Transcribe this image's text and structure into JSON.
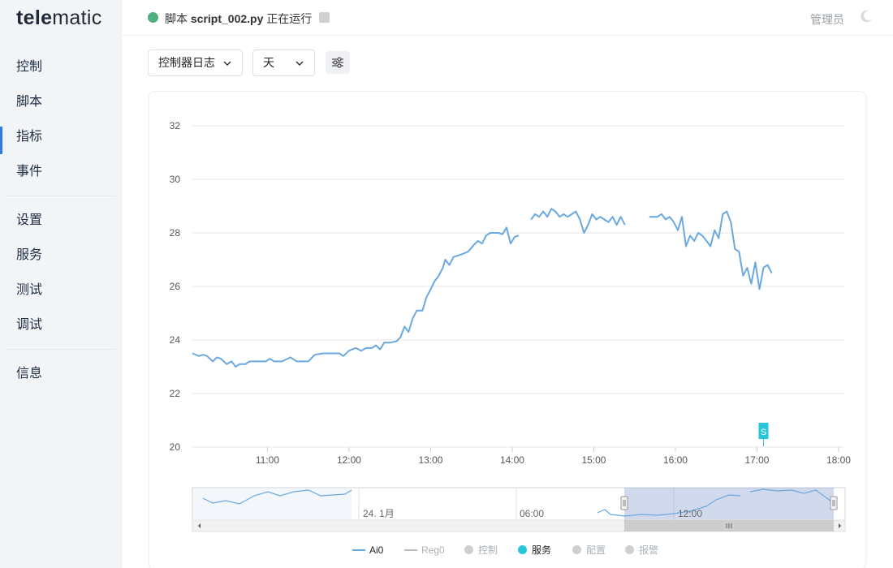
{
  "app": {
    "logo_bold": "tele",
    "logo_rest": "matic"
  },
  "sidebar": {
    "groups": [
      [
        {
          "label": "控制"
        },
        {
          "label": "脚本"
        },
        {
          "label": "指标",
          "active": true
        },
        {
          "label": "事件"
        }
      ],
      [
        {
          "label": "设置"
        },
        {
          "label": "服务"
        },
        {
          "label": "测试"
        },
        {
          "label": "调试"
        }
      ],
      [
        {
          "label": "信息"
        }
      ]
    ]
  },
  "header": {
    "script_prefix": "脚本",
    "script_name": "script_002.py",
    "script_state": "正在运行",
    "status_color": "#4caf7d",
    "user": "管理员",
    "theme_icon": "moon-icon"
  },
  "toolbar": {
    "log_select": "控制器日志",
    "range_select": "天",
    "settings_icon": "sliders-icon"
  },
  "chart_data": {
    "type": "line",
    "series": [
      {
        "name": "Ai0",
        "color": "#6aa8e0",
        "segments": [
          [
            [
              10.0,
              23.5
            ],
            [
              10.08,
              23.4
            ],
            [
              10.13,
              23.45
            ],
            [
              10.18,
              23.4
            ],
            [
              10.25,
              23.2
            ],
            [
              10.3,
              23.35
            ],
            [
              10.35,
              23.3
            ],
            [
              10.42,
              23.1
            ],
            [
              10.48,
              23.2
            ],
            [
              10.53,
              23.0
            ],
            [
              10.58,
              23.1
            ],
            [
              10.65,
              23.1
            ],
            [
              10.7,
              23.2
            ],
            [
              10.8,
              23.2
            ],
            [
              10.9,
              23.2
            ],
            [
              10.95,
              23.3
            ],
            [
              11.0,
              23.2
            ],
            [
              11.1,
              23.2
            ],
            [
              11.2,
              23.35
            ],
            [
              11.28,
              23.2
            ],
            [
              11.35,
              23.2
            ],
            [
              11.42,
              23.2
            ],
            [
              11.5,
              23.45
            ],
            [
              11.6,
              23.5
            ],
            [
              11.7,
              23.5
            ],
            [
              11.8,
              23.5
            ],
            [
              11.85,
              23.4
            ],
            [
              11.92,
              23.6
            ],
            [
              12.0,
              23.7
            ],
            [
              12.07,
              23.6
            ],
            [
              12.13,
              23.7
            ],
            [
              12.2,
              23.7
            ],
            [
              12.25,
              23.8
            ],
            [
              12.3,
              23.65
            ],
            [
              12.35,
              23.9
            ],
            [
              12.42,
              23.9
            ],
            [
              12.5,
              23.95
            ],
            [
              12.55,
              24.1
            ],
            [
              12.6,
              24.5
            ],
            [
              12.65,
              24.3
            ],
            [
              12.7,
              24.8
            ],
            [
              12.75,
              25.1
            ],
            [
              12.82,
              25.1
            ],
            [
              12.87,
              25.6
            ],
            [
              12.92,
              25.9
            ],
            [
              12.97,
              26.2
            ],
            [
              13.02,
              26.4
            ],
            [
              13.07,
              26.7
            ],
            [
              13.1,
              27.0
            ],
            [
              13.15,
              26.8
            ],
            [
              13.2,
              27.1
            ],
            [
              13.3,
              27.2
            ],
            [
              13.38,
              27.3
            ],
            [
              13.45,
              27.55
            ],
            [
              13.5,
              27.7
            ],
            [
              13.55,
              27.6
            ],
            [
              13.6,
              27.9
            ],
            [
              13.65,
              28.0
            ],
            [
              13.75,
              28.0
            ],
            [
              13.8,
              27.95
            ],
            [
              13.85,
              28.2
            ],
            [
              13.9,
              27.6
            ],
            [
              13.95,
              27.85
            ],
            [
              14.0,
              27.9
            ]
          ],
          [
            [
              14.15,
              28.5
            ],
            [
              14.2,
              28.7
            ],
            [
              14.25,
              28.6
            ],
            [
              14.3,
              28.8
            ],
            [
              14.35,
              28.6
            ],
            [
              14.4,
              28.9
            ],
            [
              14.45,
              28.8
            ],
            [
              14.5,
              28.6
            ],
            [
              14.55,
              28.7
            ],
            [
              14.6,
              28.6
            ],
            [
              14.65,
              28.7
            ],
            [
              14.7,
              28.8
            ],
            [
              14.75,
              28.5
            ],
            [
              14.8,
              28.0
            ],
            [
              14.85,
              28.3
            ],
            [
              14.9,
              28.7
            ],
            [
              14.95,
              28.5
            ],
            [
              15.0,
              28.6
            ],
            [
              15.05,
              28.5
            ],
            [
              15.1,
              28.4
            ],
            [
              15.15,
              28.6
            ],
            [
              15.2,
              28.3
            ],
            [
              15.25,
              28.6
            ],
            [
              15.3,
              28.3
            ]
          ],
          [
            [
              15.6,
              28.6
            ],
            [
              15.7,
              28.6
            ],
            [
              15.75,
              28.7
            ],
            [
              15.8,
              28.5
            ],
            [
              15.85,
              28.6
            ],
            [
              15.9,
              28.4
            ],
            [
              15.95,
              28.1
            ],
            [
              16.0,
              28.6
            ],
            [
              16.05,
              27.5
            ],
            [
              16.1,
              27.9
            ],
            [
              16.15,
              27.7
            ],
            [
              16.2,
              28.0
            ],
            [
              16.25,
              27.9
            ],
            [
              16.3,
              27.7
            ],
            [
              16.35,
              27.5
            ],
            [
              16.4,
              28.1
            ],
            [
              16.45,
              27.8
            ],
            [
              16.5,
              28.7
            ],
            [
              16.55,
              28.8
            ],
            [
              16.6,
              28.4
            ],
            [
              16.65,
              27.4
            ],
            [
              16.7,
              27.3
            ],
            [
              16.75,
              26.4
            ],
            [
              16.8,
              26.7
            ],
            [
              16.85,
              26.1
            ],
            [
              16.9,
              26.9
            ],
            [
              16.95,
              25.9
            ],
            [
              17.0,
              26.7
            ],
            [
              17.05,
              26.8
            ],
            [
              17.1,
              26.5
            ]
          ]
        ]
      }
    ],
    "xlim": [
      10.0,
      18.0
    ],
    "ylim": [
      20,
      32
    ],
    "yticks": [
      "20",
      "22",
      "24",
      "26",
      "28",
      "30",
      "32"
    ],
    "xticks": [
      {
        "x": 10.92,
        "label": "11:00"
      },
      {
        "x": 11.92,
        "label": "12:00"
      },
      {
        "x": 12.92,
        "label": "13:00"
      },
      {
        "x": 13.92,
        "label": "14:00"
      },
      {
        "x": 14.92,
        "label": "15:00"
      },
      {
        "x": 15.92,
        "label": "16:00"
      },
      {
        "x": 16.92,
        "label": "17:00"
      },
      {
        "x": 17.92,
        "label": "18:00"
      }
    ],
    "grid": true,
    "marker": {
      "x": 17.0,
      "label": "S",
      "color": "#26c6da"
    },
    "navigator": {
      "labels": [
        "24. 1月",
        "06:00",
        "12:00"
      ],
      "selection_start_label": "12:00"
    },
    "legend": [
      {
        "label": "Ai0",
        "kind": "line",
        "color": "#6aa8e0",
        "active": true
      },
      {
        "label": "Reg0",
        "kind": "line",
        "color": "#bbbbbb",
        "active": false
      },
      {
        "label": "控制",
        "kind": "dot",
        "color": "#cfcfcf",
        "active": false
      },
      {
        "label": "服务",
        "kind": "dot",
        "color": "#26c6da",
        "active": true
      },
      {
        "label": "配置",
        "kind": "dot",
        "color": "#cfcfcf",
        "active": false
      },
      {
        "label": "报警",
        "kind": "dot",
        "color": "#cfcfcf",
        "active": false
      }
    ]
  }
}
